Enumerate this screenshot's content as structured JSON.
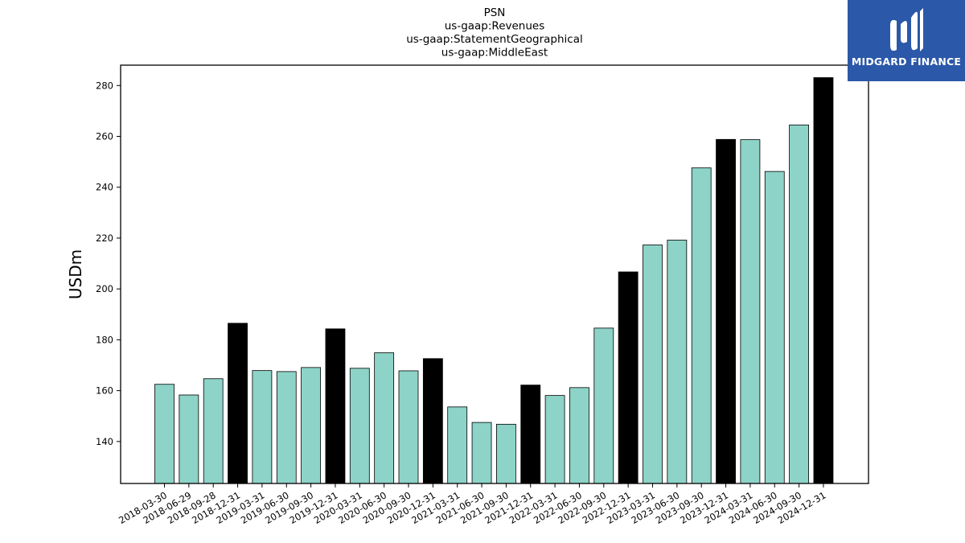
{
  "logo": {
    "text": "MIDGARD FINANCE",
    "icon": "midgard-finance-logo-icon",
    "color": "#2b58a8"
  },
  "chart_data": {
    "type": "bar",
    "title_lines": [
      "PSN",
      "us-gaap:Revenues",
      "us-gaap:StatementGeographical",
      "us-gaap:MiddleEast"
    ],
    "xlabel": "",
    "ylabel": "USDm",
    "ylim": [
      123.5,
      288
    ],
    "yticks": [
      140,
      160,
      180,
      200,
      220,
      240,
      260,
      280
    ],
    "grid": false,
    "colors": {
      "quarter": "#8dd3c7",
      "year_end": "#000000",
      "edge": "#000000"
    },
    "categories": [
      "2018-03-30",
      "2018-06-29",
      "2018-09-28",
      "2018-12-31",
      "2019-03-31",
      "2019-06-30",
      "2019-09-30",
      "2019-12-31",
      "2020-03-31",
      "2020-06-30",
      "2020-09-30",
      "2020-12-31",
      "2021-03-31",
      "2021-06-30",
      "2021-09-30",
      "2021-12-31",
      "2022-03-31",
      "2022-06-30",
      "2022-09-30",
      "2022-12-31",
      "2023-03-31",
      "2023-06-30",
      "2023-09-30",
      "2023-12-31",
      "2024-03-31",
      "2024-06-30",
      "2024-09-30",
      "2024-12-31"
    ],
    "values": [
      162.5,
      158.3,
      164.7,
      186.5,
      167.9,
      167.5,
      169.1,
      184.3,
      168.8,
      174.9,
      167.8,
      172.6,
      153.6,
      147.5,
      146.8,
      162.2,
      158.1,
      161.2,
      184.6,
      206.7,
      217.3,
      219.2,
      247.6,
      258.8,
      258.7,
      246.2,
      264.5,
      283.1
    ],
    "year_end": [
      false,
      false,
      false,
      true,
      false,
      false,
      false,
      true,
      false,
      false,
      false,
      true,
      false,
      false,
      false,
      true,
      false,
      false,
      false,
      true,
      false,
      false,
      false,
      true,
      false,
      false,
      false,
      true
    ]
  }
}
